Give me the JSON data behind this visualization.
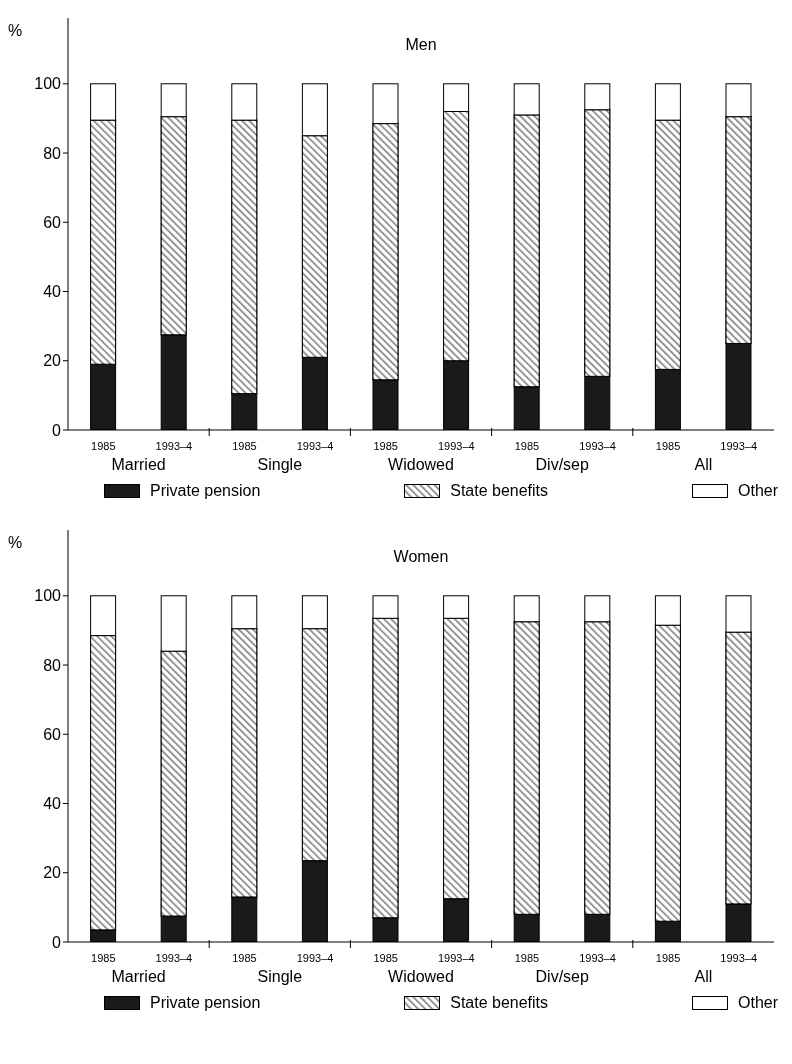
{
  "chart_data": [
    {
      "type": "bar",
      "title": "Men",
      "ylabel": "%",
      "stacked": true,
      "legend": "bottom",
      "grid": false,
      "categories": [
        "1985",
        "1993–4",
        "1985",
        "1993–4",
        "1985",
        "1993–4",
        "1985",
        "1993–4",
        "1985",
        "1993–4"
      ],
      "annotations": [
        "Married",
        "Single",
        "Widowed",
        "Div/sep",
        "All"
      ],
      "ylim": [
        0,
        119
      ],
      "yticks": [
        0,
        20,
        40,
        60,
        80,
        100
      ],
      "series": [
        {
          "name": "Private pension",
          "color": "#1a1a1a",
          "values": [
            19,
            27.5,
            10.5,
            21,
            14.5,
            20,
            12.5,
            15.5,
            17.5,
            25
          ]
        },
        {
          "name": "State benefits",
          "color": "#808080",
          "values": [
            70.5,
            63,
            79,
            64,
            74,
            72,
            78.5,
            77,
            72,
            65.5
          ]
        },
        {
          "name": "Other",
          "color": "#ffffff",
          "values": [
            10.5,
            9.5,
            10.5,
            15,
            11.5,
            8,
            9,
            7.5,
            10.5,
            9.5
          ]
        }
      ]
    },
    {
      "type": "bar",
      "title": "Women",
      "ylabel": "%",
      "stacked": true,
      "legend": "bottom",
      "grid": false,
      "categories": [
        "1985",
        "1993–4",
        "1985",
        "1993–4",
        "1985",
        "1993–4",
        "1985",
        "1993–4",
        "1985",
        "1993–4"
      ],
      "annotations": [
        "Married",
        "Single",
        "Widowed",
        "Div/sep",
        "All"
      ],
      "ylim": [
        0,
        119
      ],
      "yticks": [
        0,
        20,
        40,
        60,
        80,
        100
      ],
      "series": [
        {
          "name": "Private pension",
          "color": "#1a1a1a",
          "values": [
            3.5,
            7.5,
            13,
            23.5,
            7,
            12.5,
            8,
            8,
            6,
            11
          ]
        },
        {
          "name": "State benefits",
          "color": "#808080",
          "values": [
            85,
            76.5,
            77.5,
            67,
            86.5,
            81,
            84.5,
            84.5,
            85.5,
            78.5
          ]
        },
        {
          "name": "Other",
          "color": "#ffffff",
          "values": [
            11.5,
            16,
            9.5,
            9.5,
            6.5,
            6.5,
            7.5,
            7.5,
            8.5,
            10.5
          ]
        }
      ]
    }
  ]
}
